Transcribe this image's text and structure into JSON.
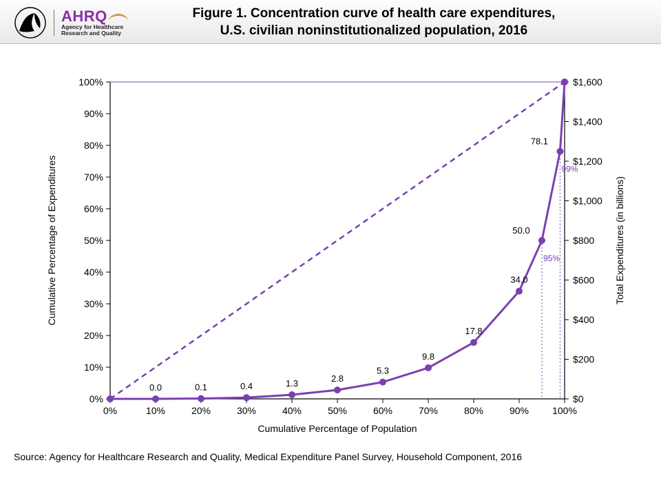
{
  "header": {
    "ahrq_text": "AHRQ",
    "ahrq_sub1": "Agency for Healthcare",
    "ahrq_sub2": "Research and Quality",
    "title_line1": "Figure 1. Concentration curve of health care expenditures,",
    "title_line2": "U.S. civilian noninstitutionalized population, 2016"
  },
  "chart": {
    "type": "line",
    "x_values": [
      0,
      10,
      20,
      30,
      40,
      50,
      60,
      70,
      80,
      90,
      100
    ],
    "y_values": [
      0,
      0.0,
      0.1,
      0.4,
      1.3,
      2.8,
      5.3,
      9.8,
      17.8,
      34.0,
      100.0
    ],
    "point_labels": [
      "",
      "0.0",
      "0.1",
      "0.4",
      "1.3",
      "2.8",
      "5.3",
      "9.8",
      "17.8",
      "34.0",
      ""
    ],
    "extra_points": [
      {
        "x": 95,
        "y": 50.0,
        "label": "50.0",
        "vline_label": "95%"
      },
      {
        "x": 99,
        "y": 78.1,
        "label": "78.1",
        "vline_label": "99%"
      }
    ],
    "x_ticks": [
      "0%",
      "10%",
      "20%",
      "30%",
      "40%",
      "50%",
      "60%",
      "70%",
      "80%",
      "90%",
      "100%"
    ],
    "y_ticks": [
      "0%",
      "10%",
      "20%",
      "30%",
      "40%",
      "50%",
      "60%",
      "70%",
      "80%",
      "90%",
      "100%"
    ],
    "y2_ticks": [
      "$0",
      "$200",
      "$400",
      "$600",
      "$800",
      "$1,000",
      "$1,200",
      "$1,400",
      "$1,600"
    ],
    "y2_tick_vals": [
      0,
      12.5,
      25,
      37.5,
      50,
      62.5,
      75,
      87.5,
      100
    ],
    "x_label": "Cumulative Percentage of Population",
    "y_label": "Cumulative Percentage of Expenditures",
    "y2_label": "Total Expenditures (in billions)",
    "xlim": [
      0,
      100
    ],
    "ylim": [
      0,
      100
    ],
    "line_color": "#7b3fb0",
    "marker_color": "#7b3fb0",
    "diag_dash": "8 6",
    "axis_color": "#000000",
    "grid_top_color": "#7b3fb0",
    "axis_fontsize": 14,
    "label_fontsize": 14,
    "datalabel_fontsize": 13,
    "line_width": 3,
    "marker_radius": 5,
    "tick_len": 6
  },
  "source": "Source: Agency for Healthcare Research and Quality, Medical Expenditure Panel Survey, Household Component, 2016"
}
